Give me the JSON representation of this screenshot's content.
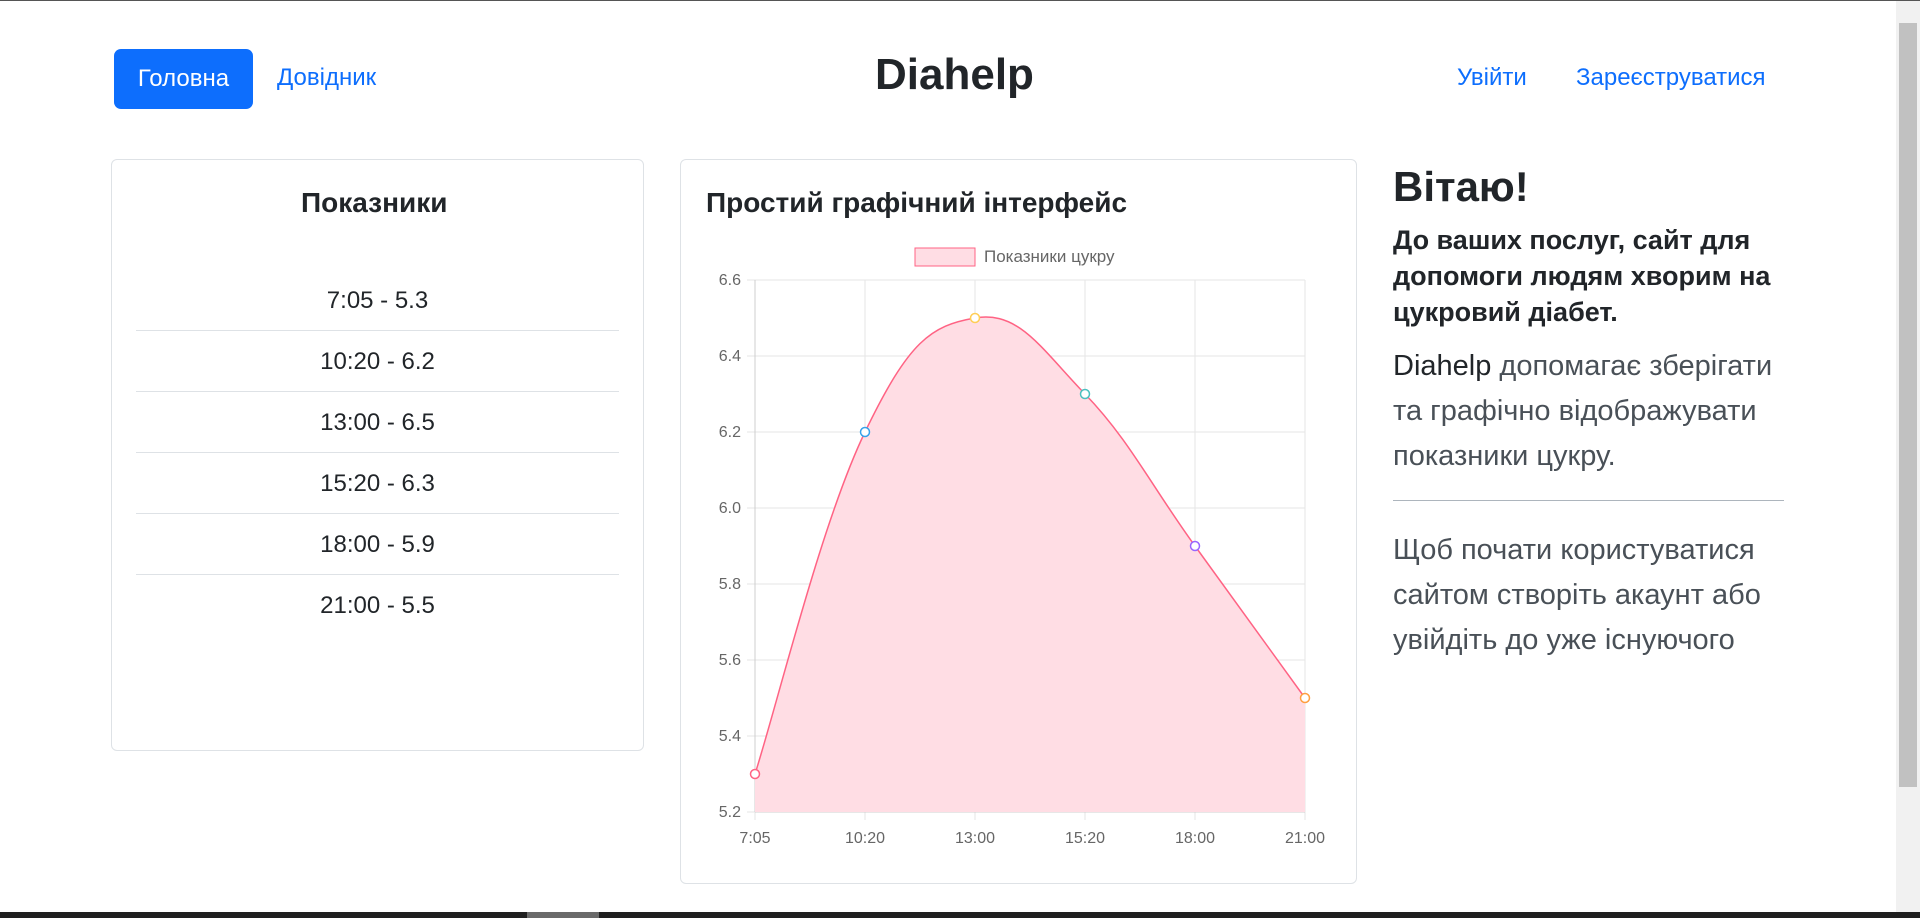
{
  "nav": {
    "home_label": "Головна",
    "reference_label": "Довідник",
    "brand": "Diahelp",
    "login_label": "Увійти",
    "register_label": "Зареєструватися"
  },
  "readings": {
    "title": "Показники",
    "items": [
      "7:05 - 5.3",
      "10:20 - 6.2",
      "13:00 - 6.5",
      "15:20 - 6.3",
      "18:00 - 5.9",
      "21:00 - 5.5"
    ]
  },
  "chart_card": {
    "title": "Простий графічний інтерфейс"
  },
  "chart_data": {
    "type": "area",
    "title": "",
    "xlabel": "",
    "ylabel": "",
    "categories": [
      "7:05",
      "10:20",
      "13:00",
      "15:20",
      "18:00",
      "21:00"
    ],
    "series": [
      {
        "name": "Показники цукру",
        "values": [
          5.3,
          6.2,
          6.5,
          6.3,
          5.9,
          5.5
        ]
      }
    ],
    "ylim": [
      5.2,
      6.6
    ],
    "yticks": [
      "6.6",
      "6.4",
      "6.2",
      "6.0",
      "5.8",
      "5.6",
      "5.4",
      "5.2"
    ],
    "grid": true,
    "legend": "top-center",
    "line_color": "#ff6384",
    "fill_color": "#ffdde4",
    "point_colors": [
      "#ff6384",
      "#36a2eb",
      "#ffce56",
      "#4bc0c0",
      "#9966ff",
      "#ff9f40"
    ]
  },
  "welcome": {
    "title": "Вітаю!",
    "lead": "До ваших послуг, сайт для допомоги людям хворим на цукровий діабет.",
    "brand_word": "Diahelp",
    "desc": " допомагає зберігати та графічно відображувати показники цукру.",
    "cta": "Щоб почати користуватися сайтом створіть акаунт або увійдіть до уже існуючого"
  }
}
